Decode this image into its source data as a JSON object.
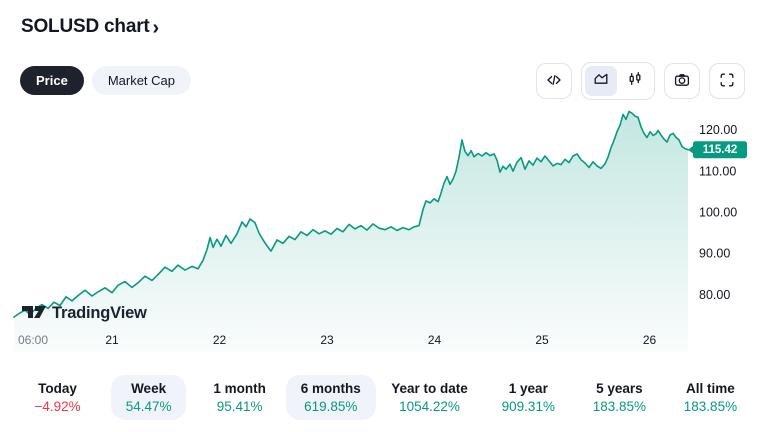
{
  "header": {
    "title": "SOLUSD chart",
    "chevron": "›"
  },
  "toggle": {
    "options": [
      {
        "label": "Price",
        "selected": true
      },
      {
        "label": "Market Cap",
        "selected": false
      }
    ]
  },
  "toolbar": {
    "buttons": [
      {
        "name": "embed-code",
        "icon": "code-icon"
      },
      {
        "name": "chart-style",
        "icons": [
          "area-chart-icon",
          "candles-icon"
        ],
        "selected": "area"
      },
      {
        "name": "snapshot",
        "icon": "camera-icon"
      },
      {
        "name": "fullscreen",
        "icon": "fullscreen-icon"
      }
    ]
  },
  "watermark": {
    "text": "TradingView"
  },
  "colors": {
    "accent": "#089981",
    "negative": "#f23645",
    "positive": "#089981",
    "text": "#131722",
    "muted_text": "#787b86",
    "pill_dark": "#1e222d",
    "pill_light": "#f0f3fa",
    "border": "#e0e3eb"
  },
  "chart_data": {
    "type": "area",
    "symbol": "SOLUSD",
    "line_color": "#089981",
    "fill_color_top": "rgba(8,153,129,0.25)",
    "fill_color_bottom": "rgba(8,153,129,0.02)",
    "current_price": 115.42,
    "current_price_label": "115.42",
    "xlim": [
      19.958,
      26.358
    ],
    "ylim": [
      66.3,
      127.5
    ],
    "grid": false,
    "legend": false,
    "y_ticks": [
      {
        "label": "120.00",
        "price": 120
      },
      {
        "label": "110.00",
        "price": 110
      },
      {
        "label": "100.00",
        "price": 100
      },
      {
        "label": "90.00",
        "price": 90
      },
      {
        "label": "80.00",
        "price": 80
      }
    ],
    "x_ticks": [
      {
        "label": "06:00",
        "day": 20.265,
        "muted": true
      },
      {
        "label": "21",
        "day": 21,
        "muted": false
      },
      {
        "label": "22",
        "day": 22,
        "muted": false
      },
      {
        "label": "23",
        "day": 23,
        "muted": false
      },
      {
        "label": "24",
        "day": 24,
        "muted": false
      },
      {
        "label": "25",
        "day": 25,
        "muted": false
      },
      {
        "label": "26",
        "day": 26,
        "muted": false
      }
    ],
    "series": [
      [
        20.088,
        74.8
      ],
      [
        20.144,
        75.8
      ],
      [
        20.191,
        76.5
      ],
      [
        20.237,
        75.4
      ],
      [
        20.293,
        76.9
      ],
      [
        20.349,
        77.8
      ],
      [
        20.405,
        76.9
      ],
      [
        20.46,
        78.4
      ],
      [
        20.516,
        77.6
      ],
      [
        20.572,
        79.7
      ],
      [
        20.628,
        78.7
      ],
      [
        20.684,
        80.0
      ],
      [
        20.749,
        81.3
      ],
      [
        20.814,
        79.9
      ],
      [
        20.87,
        80.9
      ],
      [
        20.935,
        81.9
      ],
      [
        21.0,
        80.7
      ],
      [
        21.056,
        82.5
      ],
      [
        21.121,
        83.4
      ],
      [
        21.186,
        82.0
      ],
      [
        21.242,
        83.1
      ],
      [
        21.307,
        84.7
      ],
      [
        21.372,
        83.7
      ],
      [
        21.428,
        85.1
      ],
      [
        21.493,
        86.9
      ],
      [
        21.558,
        85.9
      ],
      [
        21.614,
        87.4
      ],
      [
        21.679,
        86.2
      ],
      [
        21.744,
        87.1
      ],
      [
        21.8,
        86.5
      ],
      [
        21.847,
        88.6
      ],
      [
        21.884,
        91.2
      ],
      [
        21.912,
        94.1
      ],
      [
        21.94,
        91.7
      ],
      [
        21.977,
        93.7
      ],
      [
        22.014,
        92.0
      ],
      [
        22.06,
        94.6
      ],
      [
        22.107,
        92.7
      ],
      [
        22.163,
        95.0
      ],
      [
        22.209,
        97.9
      ],
      [
        22.247,
        96.7
      ],
      [
        22.284,
        98.6
      ],
      [
        22.33,
        97.7
      ],
      [
        22.367,
        95.2
      ],
      [
        22.405,
        93.5
      ],
      [
        22.442,
        92.1
      ],
      [
        22.479,
        90.8
      ],
      [
        22.535,
        93.5
      ],
      [
        22.591,
        92.7
      ],
      [
        22.647,
        94.4
      ],
      [
        22.702,
        93.6
      ],
      [
        22.758,
        95.5
      ],
      [
        22.814,
        94.6
      ],
      [
        22.87,
        96.0
      ],
      [
        22.926,
        95.0
      ],
      [
        22.981,
        95.7
      ],
      [
        23.037,
        94.9
      ],
      [
        23.093,
        96.3
      ],
      [
        23.149,
        95.5
      ],
      [
        23.205,
        97.3
      ],
      [
        23.26,
        96.2
      ],
      [
        23.316,
        97.0
      ],
      [
        23.372,
        95.9
      ],
      [
        23.428,
        97.4
      ],
      [
        23.484,
        96.4
      ],
      [
        23.54,
        96.0
      ],
      [
        23.595,
        96.7
      ],
      [
        23.651,
        95.8
      ],
      [
        23.707,
        96.5
      ],
      [
        23.763,
        96.0
      ],
      [
        23.809,
        96.7
      ],
      [
        23.856,
        97.0
      ],
      [
        23.893,
        100.9
      ],
      [
        23.921,
        103.0
      ],
      [
        23.958,
        102.5
      ],
      [
        23.995,
        103.5
      ],
      [
        24.033,
        102.8
      ],
      [
        24.06,
        104.9
      ],
      [
        24.088,
        107.3
      ],
      [
        24.116,
        108.9
      ],
      [
        24.144,
        107.0
      ],
      [
        24.172,
        108.3
      ],
      [
        24.2,
        110.2
      ],
      [
        24.228,
        113.6
      ],
      [
        24.256,
        117.8
      ],
      [
        24.284,
        115.0
      ],
      [
        24.312,
        114.0
      ],
      [
        24.34,
        115.2
      ],
      [
        24.367,
        113.7
      ],
      [
        24.405,
        114.5
      ],
      [
        24.442,
        113.9
      ],
      [
        24.479,
        114.7
      ],
      [
        24.516,
        114.0
      ],
      [
        24.554,
        114.4
      ],
      [
        24.581,
        112.9
      ],
      [
        24.609,
        110.0
      ],
      [
        24.637,
        111.4
      ],
      [
        24.665,
        110.7
      ],
      [
        24.702,
        111.9
      ],
      [
        24.73,
        110.2
      ],
      [
        24.767,
        112.4
      ],
      [
        24.805,
        113.5
      ],
      [
        24.842,
        110.7
      ],
      [
        24.879,
        112.7
      ],
      [
        24.916,
        111.7
      ],
      [
        24.953,
        113.4
      ],
      [
        24.991,
        112.5
      ],
      [
        25.028,
        113.9
      ],
      [
        25.065,
        112.7
      ],
      [
        25.102,
        111.5
      ],
      [
        25.14,
        112.1
      ],
      [
        25.177,
        111.8
      ],
      [
        25.214,
        113.1
      ],
      [
        25.251,
        112.3
      ],
      [
        25.288,
        113.9
      ],
      [
        25.326,
        114.4
      ],
      [
        25.363,
        113.0
      ],
      [
        25.4,
        112.2
      ],
      [
        25.437,
        111.1
      ],
      [
        25.474,
        112.5
      ],
      [
        25.512,
        111.5
      ],
      [
        25.549,
        110.9
      ],
      [
        25.586,
        112.0
      ],
      [
        25.614,
        113.6
      ],
      [
        25.642,
        115.9
      ],
      [
        25.67,
        117.7
      ],
      [
        25.698,
        119.8
      ],
      [
        25.726,
        121.4
      ],
      [
        25.753,
        124.0
      ],
      [
        25.781,
        122.8
      ],
      [
        25.809,
        124.7
      ],
      [
        25.837,
        124.3
      ],
      [
        25.865,
        123.6
      ],
      [
        25.893,
        123.3
      ],
      [
        25.921,
        121.0
      ],
      [
        25.949,
        119.4
      ],
      [
        25.977,
        118.4
      ],
      [
        26.005,
        119.8
      ],
      [
        26.033,
        118.9
      ],
      [
        26.06,
        119.3
      ],
      [
        26.079,
        120.1
      ],
      [
        26.107,
        119.0
      ],
      [
        26.135,
        118.0
      ],
      [
        26.163,
        117.3
      ],
      [
        26.191,
        119.0
      ],
      [
        26.219,
        119.4
      ],
      [
        26.247,
        118.4
      ],
      [
        26.274,
        117.8
      ],
      [
        26.302,
        116.2
      ],
      [
        26.33,
        115.7
      ],
      [
        26.358,
        115.42
      ]
    ]
  },
  "stats": {
    "items": [
      {
        "label": "Today",
        "value": "−4.92%",
        "direction": "down",
        "pill": false
      },
      {
        "label": "Week",
        "value": "54.47%",
        "direction": "up",
        "pill": true
      },
      {
        "label": "1 month",
        "value": "95.41%",
        "direction": "up",
        "pill": false
      },
      {
        "label": "6 months",
        "value": "619.85%",
        "direction": "up",
        "pill": true
      },
      {
        "label": "Year to date",
        "value": "1054.22%",
        "direction": "up",
        "pill": false
      },
      {
        "label": "1 year",
        "value": "909.31%",
        "direction": "up",
        "pill": false
      },
      {
        "label": "5 years",
        "value": "183.85%",
        "direction": "up",
        "pill": false
      },
      {
        "label": "All time",
        "value": "183.85%",
        "direction": "up",
        "pill": false
      }
    ]
  }
}
